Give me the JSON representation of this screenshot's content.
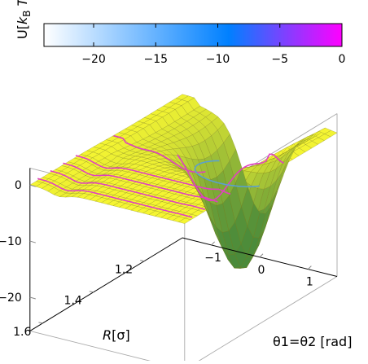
{
  "chart_data": {
    "type": "surface",
    "title": "",
    "colorbar": {
      "label": "U[kB T]",
      "label_main": "U[",
      "label_sub_k": "k",
      "label_sub_B": "B",
      "label_T": "T",
      "label_close": "]",
      "range": [
        -24,
        0
      ],
      "ticks": [
        -20,
        -15,
        -10,
        -5,
        0
      ],
      "tick_labels": [
        "−20",
        "−15",
        "−10",
        "−5",
        "0"
      ],
      "colors": [
        "#ffffff",
        "#0080ff",
        "#ff00ff"
      ],
      "orientation": "horizontal",
      "position": "top"
    },
    "z_axis": {
      "label": "",
      "range": [
        -26,
        3
      ],
      "ticks": [
        0,
        -10,
        -20
      ],
      "tick_labels": [
        "0",
        "−10",
        "−20"
      ]
    },
    "R_axis": {
      "label": "R[σ]",
      "range": [
        1.05,
        1.65
      ],
      "ticks": [
        1.6,
        1.4,
        1.2
      ],
      "tick_labels": [
        "1.6",
        "1.4",
        "1.2"
      ]
    },
    "theta_axis": {
      "label": "θ1=θ2 [rad]",
      "range": [
        -1.6,
        1.6
      ],
      "ticks": [
        -1,
        0,
        1
      ],
      "tick_labels": [
        "−1",
        "0",
        "1"
      ]
    },
    "surface_colors": {
      "high": "#f5f532",
      "low": "#4a8a3a",
      "mesh": "#7a7a1a"
    },
    "contour_colors": {
      "magenta": "#e040c0",
      "blue": "#5aa0d0"
    },
    "plateau_value": 0,
    "minimum_value": -24,
    "grid": true
  }
}
